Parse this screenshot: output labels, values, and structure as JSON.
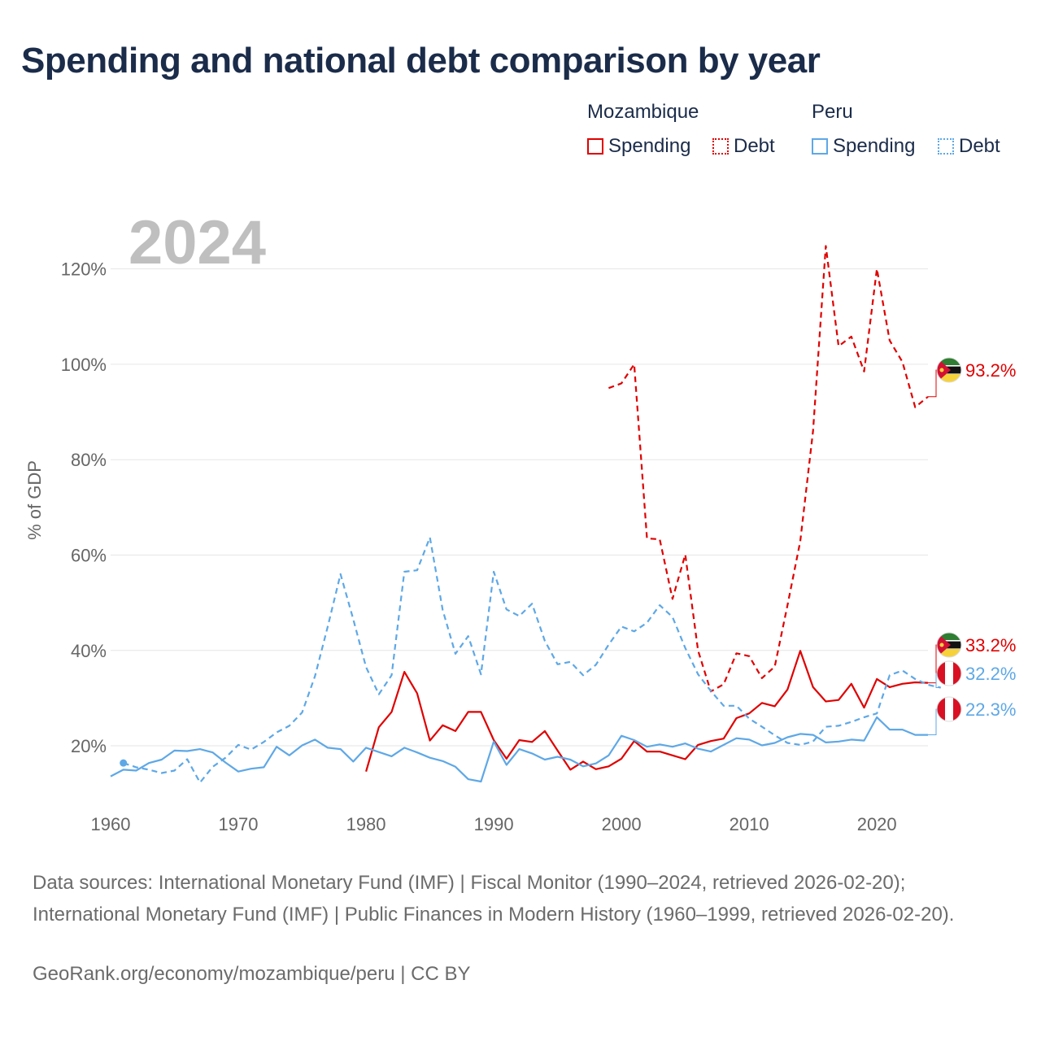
{
  "title": "Spending and national debt comparison by year",
  "legend": {
    "groups": [
      {
        "name": "Mozambique",
        "spending_label": "Spending",
        "debt_label": "Debt"
      },
      {
        "name": "Peru",
        "spending_label": "Spending",
        "debt_label": "Debt"
      }
    ]
  },
  "sources": "Data sources: International Monetary Fund (IMF) | Fiscal Monitor (1990–2024, retrieved 2026-02-20); International Monetary Fund (IMF) | Public Finances in Modern History (1960–1999, retrieved 2026-02-20).",
  "credit": "GeoRank.org/economy/mozambique/peru | CC BY",
  "colors": {
    "mozambique": "#e00000",
    "peru": "#5ea8e6",
    "grid": "#e6e6e6",
    "axis_text": "#666666",
    "year_watermark": "#bfbfbf"
  },
  "chart_data": {
    "type": "line",
    "title": "Spending and national debt comparison by year",
    "xlabel": "",
    "ylabel": "% of GDP",
    "xlim": [
      1960,
      2024
    ],
    "ylim": [
      5,
      130
    ],
    "x_ticks": [
      1960,
      1970,
      1980,
      1990,
      2000,
      2010,
      2020
    ],
    "y_ticks": [
      20,
      40,
      60,
      80,
      100,
      120
    ],
    "y_tick_labels": [
      "20%",
      "40%",
      "60%",
      "80%",
      "100%",
      "120%"
    ],
    "year_label": "2024",
    "legend_position": "top-right",
    "series": [
      {
        "name": "Mozambique Spending",
        "country": "Mozambique",
        "metric": "Spending",
        "style": "solid",
        "start_year": 1980,
        "values": [
          14.6,
          23.9,
          27.1,
          35.5,
          31.0,
          21.1,
          24.3,
          23.1,
          27.1,
          27.1,
          21.2,
          17.3,
          21.2,
          20.8,
          23.1,
          19.0,
          15.0,
          16.7,
          15.1,
          15.7,
          17.3,
          21.0,
          18.8,
          18.8,
          18.0,
          17.2,
          20.2,
          21.0,
          21.5,
          25.8,
          26.8,
          29.0,
          28.3,
          31.8,
          39.9,
          32.3,
          29.3,
          29.6,
          33.0,
          28.0,
          34.0,
          32.3,
          33.0,
          33.3,
          33.2
        ],
        "end_label": "33.2%"
      },
      {
        "name": "Mozambique Debt",
        "country": "Mozambique",
        "metric": "Debt",
        "style": "dashed",
        "start_year": 1999,
        "values": [
          95.0,
          96.0,
          100.0,
          63.5,
          63.3,
          50.8,
          60.1,
          40.0,
          31.4,
          32.9,
          39.4,
          38.8,
          34.2,
          36.6,
          49.5,
          62.9,
          86.0,
          124.8,
          103.8,
          105.8,
          98.5,
          120.0,
          105.0,
          100.5,
          91.0,
          93.2
        ],
        "end_label": "93.2%"
      },
      {
        "name": "Peru Spending",
        "country": "Peru",
        "metric": "Spending",
        "style": "solid",
        "start_year": 1960,
        "values": [
          13.6,
          15.0,
          14.8,
          16.4,
          17.1,
          19.0,
          18.9,
          19.3,
          18.6,
          16.5,
          14.6,
          15.2,
          15.5,
          19.8,
          18.0,
          20.1,
          21.3,
          19.6,
          19.3,
          16.7,
          19.6,
          18.7,
          17.8,
          19.6,
          18.6,
          17.5,
          16.8,
          15.6,
          13.0,
          12.5,
          20.9,
          16.0,
          19.3,
          18.4,
          17.1,
          17.7,
          17.1,
          15.7,
          16.3,
          18.0,
          22.1,
          21.2,
          19.8,
          20.3,
          19.8,
          20.5,
          19.4,
          18.8,
          20.2,
          21.6,
          21.3,
          20.1,
          20.6,
          21.8,
          22.5,
          22.3,
          20.7,
          20.9,
          21.3,
          21.1,
          26.0,
          23.4,
          23.4,
          22.3,
          22.3
        ],
        "end_label": "22.3%"
      },
      {
        "name": "Peru Debt",
        "country": "Peru",
        "metric": "Debt",
        "style": "dashed",
        "start_year": 1961,
        "values": [
          16.4,
          15.5,
          15.0,
          14.3,
          14.8,
          17.2,
          12.3,
          15.6,
          17.5,
          20.2,
          19.2,
          20.8,
          22.8,
          24.2,
          27.0,
          34.6,
          45.0,
          56.0,
          46.5,
          36.5,
          30.8,
          34.8,
          56.5,
          56.8,
          63.7,
          48.5,
          39.3,
          43.0,
          35.0,
          56.5,
          48.6,
          47.2,
          49.8,
          42.0,
          37.1,
          37.6,
          34.8,
          37.0,
          41.2,
          45.0,
          44.0,
          45.8,
          49.5,
          47.0,
          40.5,
          35.0,
          31.5,
          28.4,
          28.4,
          25.7,
          24.0,
          22.2,
          20.6,
          20.2,
          20.9,
          24.0,
          24.2,
          25.0,
          26.0,
          26.8,
          34.8,
          35.8,
          34.0,
          32.8,
          32.2
        ],
        "end_label": "32.2%"
      }
    ]
  }
}
